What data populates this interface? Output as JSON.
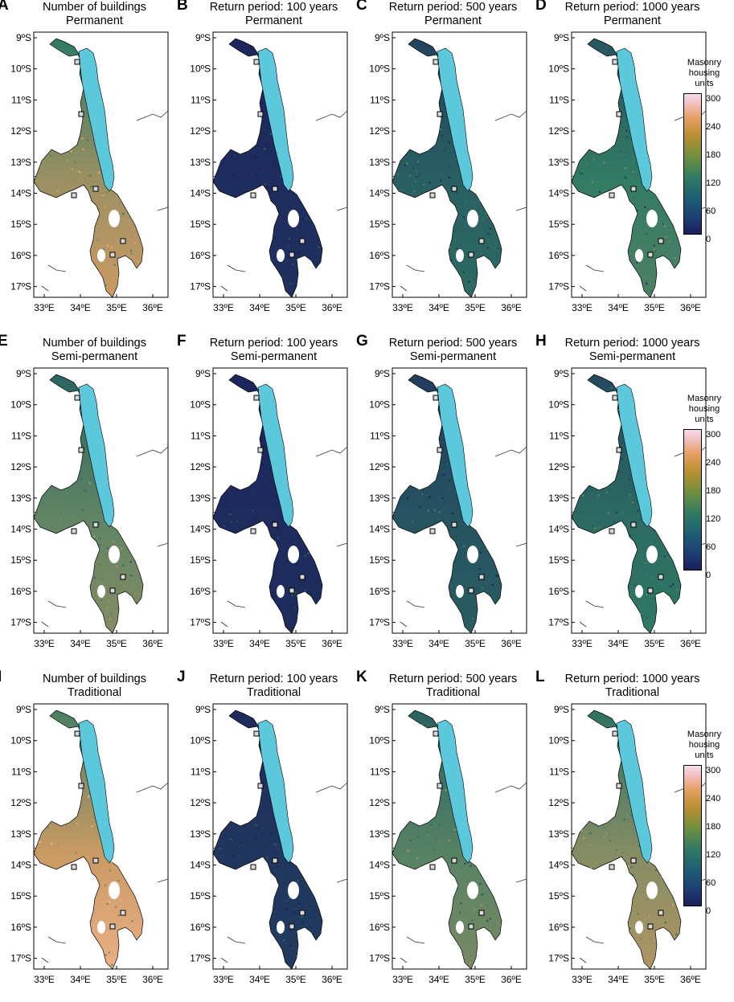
{
  "panels": [
    {
      "letter": "A",
      "title1": "Number of buildings",
      "title2": "Permanent",
      "level": 0.55
    },
    {
      "letter": "B",
      "title1": "Return period: 100 years",
      "title2": "Permanent",
      "level": 0.05
    },
    {
      "letter": "C",
      "title1": "Return period: 500 years",
      "title2": "Permanent",
      "level": 0.22
    },
    {
      "letter": "D",
      "title1": "Return period: 1000 years",
      "title2": "Permanent",
      "level": 0.32
    },
    {
      "letter": "E",
      "title1": "Number of buildings",
      "title2": "Semi-permanent",
      "level": 0.42
    },
    {
      "letter": "F",
      "title1": "Return period: 100 years",
      "title2": "Semi-permanent",
      "level": 0.04
    },
    {
      "letter": "G",
      "title1": "Return period: 500 years",
      "title2": "Semi-permanent",
      "level": 0.18
    },
    {
      "letter": "H",
      "title1": "Return period: 1000 years",
      "title2": "Semi-permanent",
      "level": 0.26
    },
    {
      "letter": "I",
      "title1": "Number of buildings",
      "title2": "Traditional",
      "level": 0.65
    },
    {
      "letter": "J",
      "title1": "Return period: 100 years",
      "title2": "Traditional",
      "level": 0.08
    },
    {
      "letter": "K",
      "title1": "Return period: 500 years",
      "title2": "Traditional",
      "level": 0.4
    },
    {
      "letter": "L",
      "title1": "Return period: 1000 years",
      "title2": "Traditional",
      "level": 0.5
    }
  ],
  "lat_labels": [
    "9ºS",
    "10ºS",
    "11ºS",
    "12ºS",
    "13ºS",
    "14ºS",
    "15ºS",
    "16ºS",
    "17ºS"
  ],
  "lon_labels": [
    "33ºE",
    "34ºE",
    "35ºE",
    "36ºE"
  ],
  "colorbar": {
    "title_lines": [
      "Masonry",
      "housing",
      "units"
    ],
    "ticks": [
      "300",
      "240",
      "180",
      "120",
      "60",
      "0"
    ]
  },
  "colors": {
    "lake": "#5bc8dc",
    "low": "#1b1f5c",
    "mid": "#2f7a64",
    "high": "#e7a063",
    "peak": "#f7dcef"
  }
}
